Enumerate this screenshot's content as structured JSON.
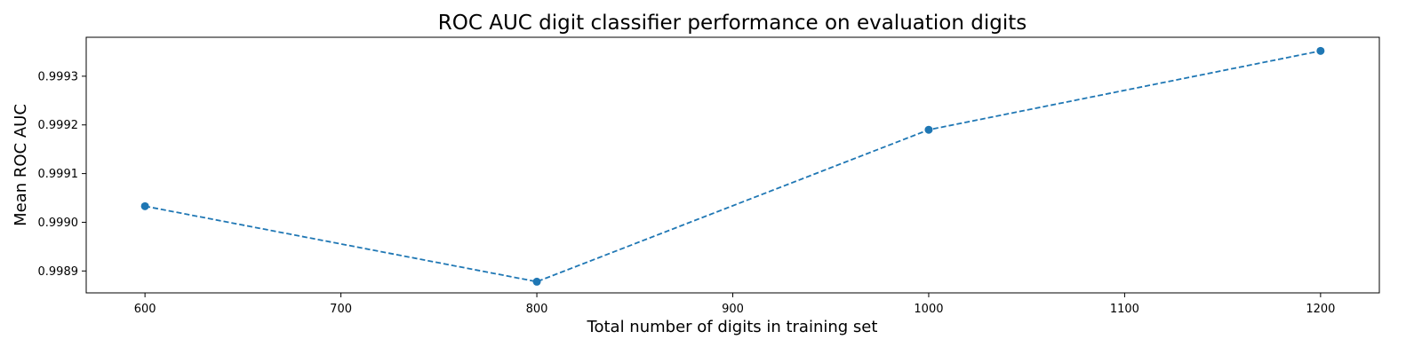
{
  "chart_data": {
    "type": "line",
    "title": "ROC AUC digit classifier performance on evaluation digits",
    "xlabel": "Total number of digits in training set",
    "ylabel": "Mean ROC AUC",
    "x": [
      600,
      800,
      1000,
      1200
    ],
    "series": [
      {
        "name": "Mean ROC AUC",
        "values": [
          0.999033,
          0.998878,
          0.99919,
          0.999352
        ],
        "color": "#1f77b4",
        "line_style": "dashed",
        "marker": "circle"
      }
    ],
    "xlim": [
      570,
      1230
    ],
    "ylim": [
      0.998855,
      0.99938
    ],
    "xticks": [
      600,
      700,
      800,
      900,
      1000,
      1100,
      1200
    ],
    "yticks": [
      0.9989,
      0.999,
      0.9991,
      0.9992,
      0.9993
    ],
    "ytick_decimals": 4,
    "grid": false
  }
}
